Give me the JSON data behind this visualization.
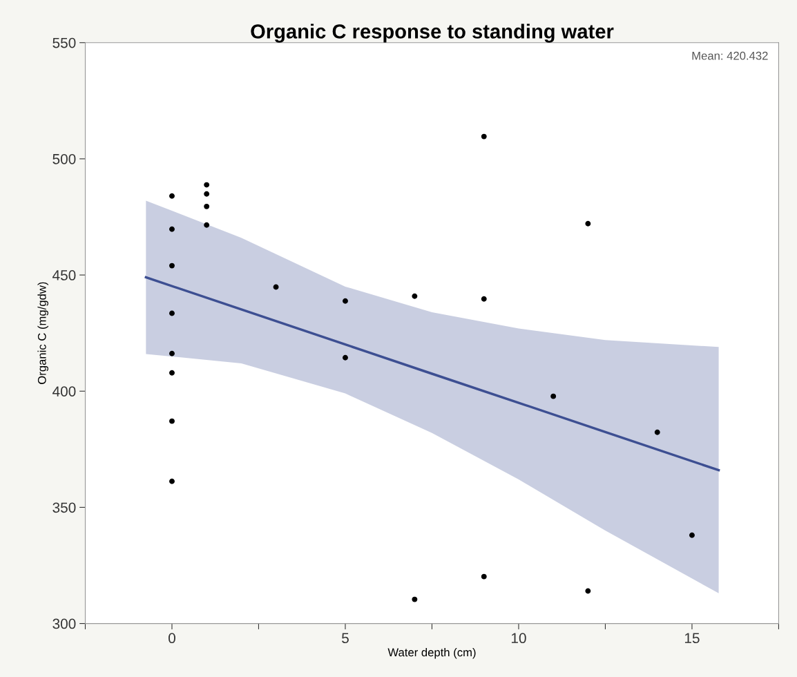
{
  "chart_data": {
    "type": "scatter",
    "title": "Organic C response to standing water",
    "xlabel": "Water depth (cm)",
    "ylabel": "Organic C (mg/gdw)",
    "annotations": [
      "Mean: 420.432"
    ],
    "xlim": [
      -2.5,
      17.5
    ],
    "xticks": [
      {
        "value": -2.5,
        "label": null
      },
      0,
      {
        "value": 2.5,
        "label": null
      },
      5,
      {
        "value": 7.5,
        "label": null
      },
      10,
      {
        "value": 12.5,
        "label": null
      },
      15,
      {
        "value": 17.5,
        "label": null
      }
    ],
    "ylim": [
      300,
      550
    ],
    "yticks": [
      300,
      350,
      400,
      450,
      500,
      550
    ],
    "grid": false,
    "legend": false,
    "marker": "circle",
    "series": [
      {
        "type": "line",
        "color": "#3d4f92",
        "line_style": "solid",
        "marker": "none",
        "x": [
          -0.75,
          2,
          5,
          7.5,
          10,
          12.5,
          15.77
        ],
        "values": [
          449,
          435.2,
          420.1,
          407.5,
          395,
          382.4,
          366
        ],
        "lower": [
          416,
          412,
          399,
          382,
          362,
          340,
          313
        ],
        "upper": [
          482,
          466,
          445,
          434,
          427,
          422,
          419
        ]
      },
      {
        "color": "#000000",
        "x": [
          0,
          0,
          0,
          0,
          0,
          0,
          0,
          0,
          1,
          1,
          1,
          1,
          3,
          5,
          5,
          7,
          7,
          9,
          9,
          9,
          11,
          12,
          12,
          14,
          15
        ],
        "values": [
          484,
          469.7,
          454,
          433.5,
          416.2,
          407.9,
          387.1,
          361.2,
          488.8,
          484.9,
          479.5,
          471.5,
          444.8,
          438.8,
          414.4,
          440.9,
          310.4,
          509.6,
          439.7,
          320.2,
          397.8,
          472.1,
          314,
          382.3,
          338
        ]
      }
    ]
  }
}
